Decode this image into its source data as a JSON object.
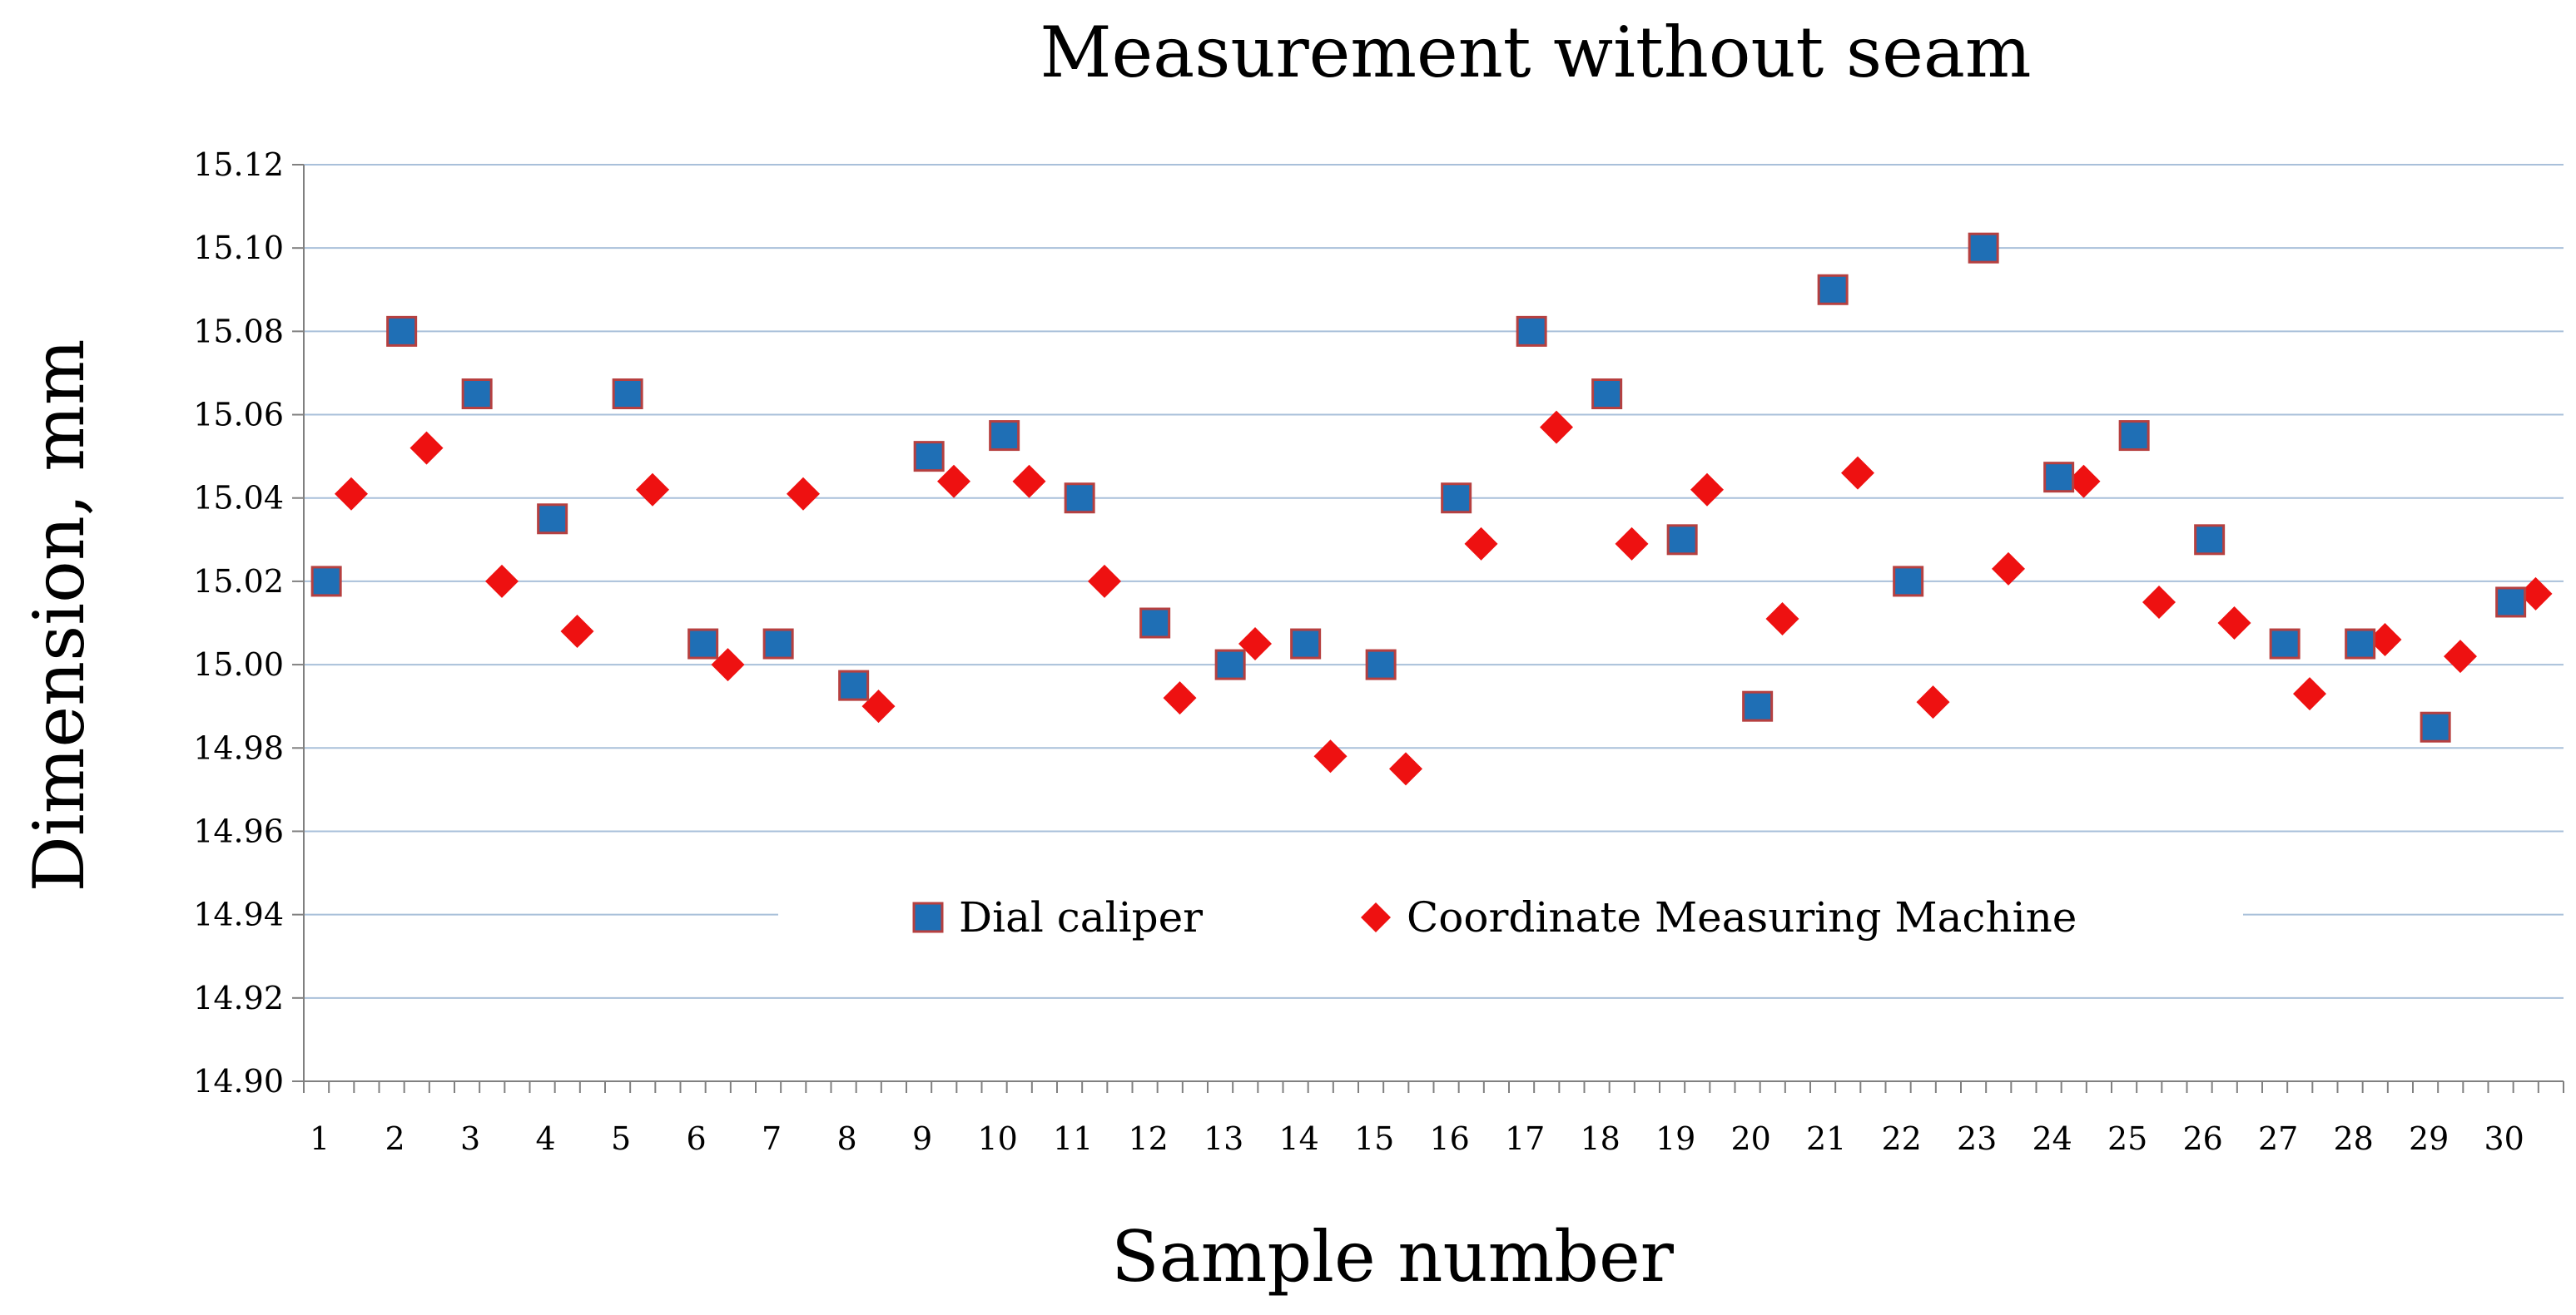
{
  "chart_data": {
    "type": "scatter",
    "title": "Measurement without seam",
    "xlabel": "Sample number",
    "ylabel": "Dimension, mm",
    "ylim": [
      14.9,
      15.12
    ],
    "ytick_step": 0.02,
    "yticks": [
      "14.90",
      "14.92",
      "14.94",
      "14.96",
      "14.98",
      "15.00",
      "15.02",
      "15.04",
      "15.06",
      "15.08",
      "15.10",
      "15.12"
    ],
    "x": [
      1,
      2,
      3,
      4,
      5,
      6,
      7,
      8,
      9,
      10,
      11,
      12,
      13,
      14,
      15,
      16,
      17,
      18,
      19,
      20,
      21,
      22,
      23,
      24,
      25,
      26,
      27,
      28,
      29,
      30
    ],
    "xticks": [
      "1",
      "2",
      "3",
      "4",
      "5",
      "6",
      "7",
      "8",
      "9",
      "10",
      "11",
      "12",
      "13",
      "14",
      "15",
      "16",
      "17",
      "18",
      "19",
      "20",
      "21",
      "22",
      "23",
      "24",
      "25",
      "26",
      "27",
      "28",
      "29",
      "30"
    ],
    "grid": true,
    "legend_position": "bottom-center",
    "series": [
      {
        "name": "Dial caliper",
        "marker": "square",
        "color": "#1f6fb5",
        "values": [
          15.02,
          15.08,
          15.065,
          15.035,
          15.065,
          15.005,
          15.005,
          14.995,
          15.05,
          15.055,
          15.04,
          15.01,
          15.0,
          15.005,
          15.0,
          15.04,
          15.08,
          15.065,
          15.03,
          14.99,
          15.09,
          15.02,
          15.1,
          15.045,
          15.055,
          15.03,
          15.005,
          15.005,
          14.985,
          15.015
        ]
      },
      {
        "name": "Coordinate Measuring Machine",
        "marker": "diamond",
        "color": "#ee1111",
        "values": [
          15.041,
          15.052,
          15.02,
          15.008,
          15.042,
          15.0,
          15.041,
          14.99,
          15.044,
          15.044,
          15.02,
          14.992,
          15.005,
          14.978,
          14.975,
          15.029,
          15.057,
          15.029,
          15.042,
          15.011,
          15.046,
          14.991,
          15.023,
          15.044,
          15.015,
          15.01,
          14.993,
          15.006,
          15.002,
          15.017
        ]
      }
    ]
  }
}
